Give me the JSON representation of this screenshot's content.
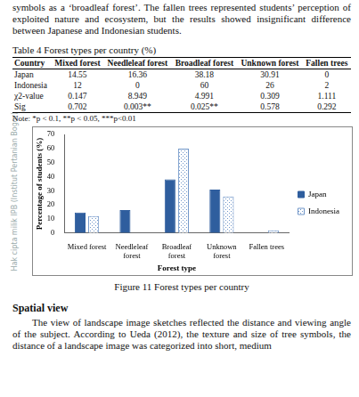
{
  "top_text": "symbols as a ‘broadleaf forest’. The fallen trees represented students’ perception of exploited nature and ecosystem, but the results showed insignificant difference between Japanese and Indonesian students.",
  "table": {
    "title": "Table 4 Forest types per country (%)",
    "header": [
      "Country",
      "Mixed forest",
      "Needleleaf forest",
      "Broadleaf forest",
      "Unknown forest",
      "Fallen trees"
    ],
    "rows": [
      [
        "Japan",
        "14.55",
        "16.36",
        "38.18",
        "30.91",
        "0"
      ],
      [
        "Indonesia",
        "12",
        "0",
        "60",
        "26",
        "2"
      ],
      [
        "χ2-value",
        "0.147",
        "8.949",
        "4.991",
        "0.309",
        "1.111"
      ],
      [
        "Sig",
        "0.702",
        "0.003**",
        "0.025**",
        "0.578",
        "0.292"
      ]
    ],
    "note": "Note: *p < 0.1, **p < 0.05, ***p<0.01"
  },
  "chart_data": {
    "type": "bar",
    "x_label": "Forest type",
    "y_label": "Percentage of students (%)",
    "categories": [
      "Mixed forest",
      "Needleleaf forest",
      "Broadleaf forest",
      "Unknown forest",
      "Fallen trees"
    ],
    "series": [
      {
        "name": "Japan",
        "color": "#2f5e9e",
        "values": [
          14.55,
          16.36,
          38.18,
          30.91,
          0
        ]
      },
      {
        "name": "Indonesia",
        "color": "#6f95c8",
        "values": [
          12,
          0,
          60,
          26,
          2
        ]
      }
    ],
    "ylim": [
      0,
      70
    ],
    "yticks": [
      0,
      10,
      20,
      30,
      40,
      50,
      60,
      70
    ],
    "grid": false,
    "legend": "right"
  },
  "figure_caption": "Figure 11 Forest types per country",
  "section_title": "Spatial view",
  "paragraph": "The view of landscape image sketches reflected the distance and viewing angle of the subject. According to Ueda (2012), the texture and size of tree symbols, the distance of a landscape image was categorized into short, medium",
  "watermark": "Hak cipta milik IPB (Institut Pertanian Bogor)"
}
